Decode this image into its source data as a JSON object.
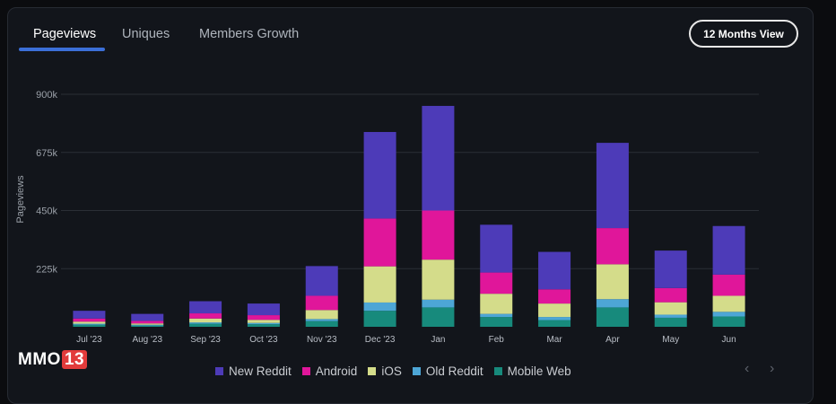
{
  "tabs": [
    {
      "label": "Pageviews",
      "active": true
    },
    {
      "label": "Uniques",
      "active": false
    },
    {
      "label": "Members Growth",
      "active": false
    }
  ],
  "view_button": "12 Months View",
  "watermark": {
    "text": "MMO",
    "num": "13"
  },
  "chart_data": {
    "type": "bar",
    "stacked": true,
    "ylabel": "Pageviews",
    "ylim": [
      0,
      900000
    ],
    "yticks": [
      {
        "value": 225000,
        "label": "225k"
      },
      {
        "value": 450000,
        "label": "450k"
      },
      {
        "value": 675000,
        "label": "675k"
      },
      {
        "value": 900000,
        "label": "900k"
      }
    ],
    "categories": [
      "Jul '23",
      "Aug '23",
      "Sep '23",
      "Oct '23",
      "Nov '23",
      "Dec '23",
      "Jan",
      "Feb",
      "Mar",
      "Apr",
      "May",
      "Jun"
    ],
    "series": [
      {
        "name": "Mobile Web",
        "color": "#178a7c",
        "values": [
          8000,
          5000,
          12000,
          10000,
          22000,
          62000,
          75000,
          38000,
          26000,
          75000,
          35000,
          40000
        ]
      },
      {
        "name": "Old Reddit",
        "color": "#4da6d6",
        "values": [
          4000,
          3000,
          5000,
          5000,
          8000,
          32000,
          30000,
          12000,
          12000,
          32000,
          12000,
          18000
        ]
      },
      {
        "name": "iOS",
        "color": "#d4dc8a",
        "values": [
          8000,
          5000,
          15000,
          12000,
          35000,
          140000,
          155000,
          78000,
          52000,
          135000,
          48000,
          62000
        ]
      },
      {
        "name": "Android",
        "color": "#e0169a",
        "values": [
          12000,
          10000,
          20000,
          18000,
          55000,
          185000,
          190000,
          82000,
          55000,
          140000,
          55000,
          82000
        ]
      },
      {
        "name": "New Reddit",
        "color": "#4d3bb8",
        "values": [
          30000,
          27000,
          47000,
          45000,
          115000,
          335000,
          405000,
          185000,
          145000,
          330000,
          145000,
          188000
        ]
      }
    ],
    "legend": [
      "New Reddit",
      "Android",
      "iOS",
      "Old Reddit",
      "Mobile Web"
    ]
  }
}
